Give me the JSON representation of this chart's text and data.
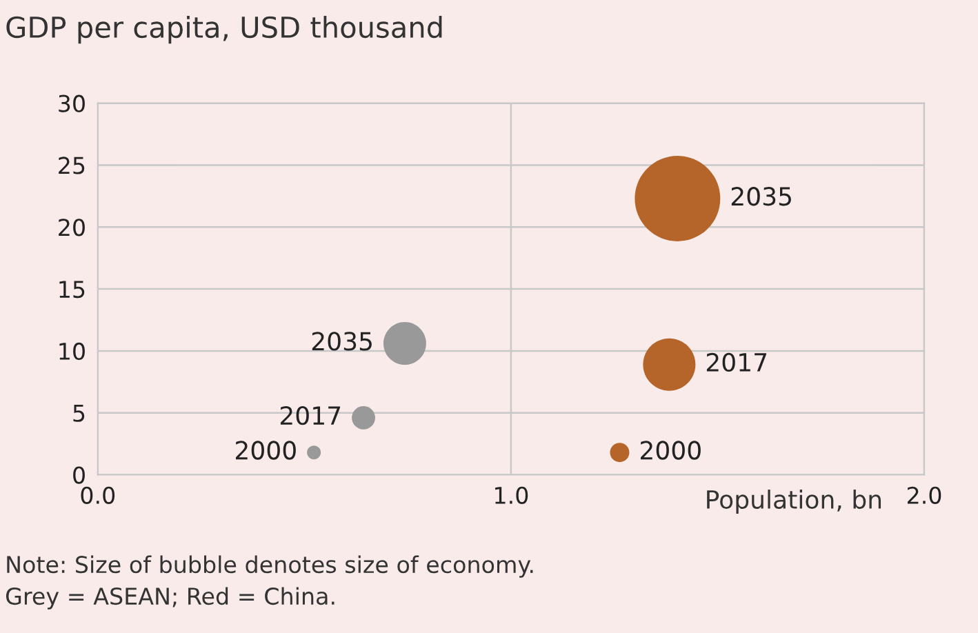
{
  "chart_data": {
    "type": "bubble",
    "ylabel": "GDP per capita, USD thousand",
    "xlabel": "Population, bn",
    "series": [
      {
        "color": "#999999",
        "x": [
          0.523,
          0.643,
          0.743
        ],
        "values": [
          1.8,
          4.6,
          10.6
        ],
        "sizes": [
          0.026,
          0.075,
          0.25
        ]
      },
      {
        "color": "#b5652a",
        "x": [
          1.263,
          1.383,
          1.403
        ],
        "values": [
          1.8,
          8.9,
          22.3
        ],
        "sizes": [
          0.051,
          0.376,
          1
        ]
      }
    ],
    "xlim": [
      0,
      2
    ],
    "xticks": [
      {
        "value": 0,
        "label": "0.0"
      },
      {
        "value": 1,
        "label": "1.0"
      },
      {
        "value": 2,
        "label": "2.0"
      }
    ],
    "ylim": [
      0,
      30
    ],
    "yticks": [
      0,
      5,
      10,
      15,
      20,
      25,
      30
    ],
    "grid": true,
    "annotations": [
      {
        "text": "2000",
        "x": 0.523,
        "y": 1.8
      },
      {
        "text": "2017",
        "x": 0.643,
        "y": 4.6
      },
      {
        "text": "2035",
        "x": 0.743,
        "y": 10.6
      },
      {
        "text": "2000",
        "x": 1.263,
        "y": 1.8
      },
      {
        "text": "2017",
        "x": 1.383,
        "y": 8.9
      },
      {
        "text": "2035",
        "x": 1.403,
        "y": 22.3
      },
      "Note: Size of bubble denotes size of economy.",
      "Grey = ASEAN; Red = China."
    ]
  }
}
